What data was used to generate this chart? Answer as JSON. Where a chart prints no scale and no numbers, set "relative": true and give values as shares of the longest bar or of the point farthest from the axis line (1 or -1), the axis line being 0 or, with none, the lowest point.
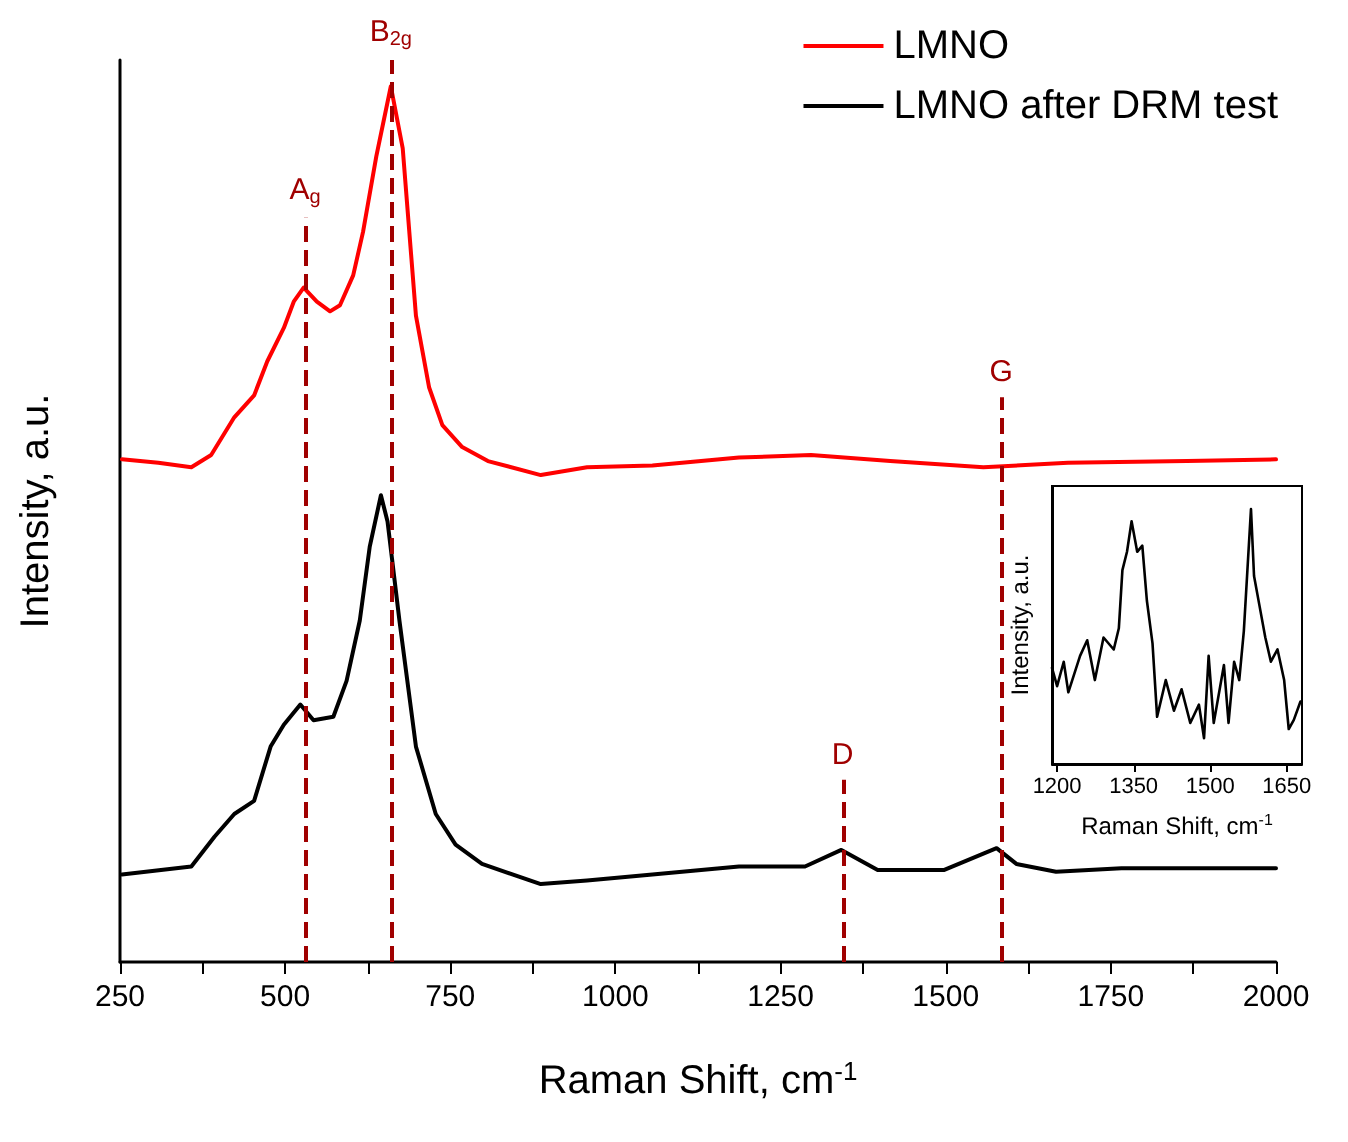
{
  "chart_data": [
    {
      "type": "line",
      "xlabel": "Raman Shift, cm$^{-1}$",
      "ylabel": "Intensity, a.u.",
      "relative": true,
      "legend": "top right",
      "grid": false,
      "marker": "none",
      "line_style": "solid",
      "xlim": [
        250,
        2000
      ],
      "xticks": [
        250,
        500,
        750,
        1000,
        1250,
        1500,
        1750,
        2000
      ],
      "series": [
        {
          "name": "LMNO",
          "color": "#ff0000",
          "x": [
            253,
            308,
            358,
            388,
            423,
            453,
            473,
            498,
            513,
            528,
            548,
            568,
            583,
            603,
            618,
            638,
            660,
            678,
            698,
            718,
            738,
            768,
            807,
            887,
            957,
            1056,
            1187,
            1296,
            1416,
            1557,
            1685,
            1865,
            2000
          ],
          "values": [
            0.574,
            0.57,
            0.565,
            0.579,
            0.622,
            0.647,
            0.686,
            0.724,
            0.754,
            0.77,
            0.754,
            0.743,
            0.75,
            0.784,
            0.834,
            0.92,
            1.0,
            0.929,
            0.738,
            0.656,
            0.613,
            0.588,
            0.572,
            0.556,
            0.565,
            0.567,
            0.576,
            0.579,
            0.572,
            0.565,
            0.57,
            0.572,
            0.574
          ]
        },
        {
          "name": "LMNO after DRM test",
          "color": "#000000",
          "x": [
            253,
            358,
            393,
            423,
            453,
            478,
            498,
            523,
            543,
            573,
            593,
            613,
            628,
            645,
            655,
            673,
            698,
            728,
            758,
            798,
            887,
            957,
            1056,
            1187,
            1287,
            1342,
            1397,
            1497,
            1577,
            1607,
            1667,
            1766,
            2000
          ],
          "values": [
            0.1,
            0.109,
            0.143,
            0.169,
            0.184,
            0.246,
            0.271,
            0.294,
            0.276,
            0.28,
            0.321,
            0.39,
            0.474,
            0.533,
            0.503,
            0.39,
            0.246,
            0.169,
            0.134,
            0.112,
            0.089,
            0.093,
            0.1,
            0.109,
            0.109,
            0.128,
            0.105,
            0.105,
            0.13,
            0.112,
            0.103,
            0.107,
            0.107
          ]
        }
      ],
      "ref_lines": [
        {
          "axis": "x",
          "value": 530,
          "label": "A$_{g}$",
          "color": "#a00000",
          "line_style": "dashed"
        },
        {
          "axis": "x",
          "value": 660,
          "label": "B$_{2g}$",
          "color": "#a00000",
          "line_style": "dashed"
        },
        {
          "axis": "x",
          "value": 1344,
          "label": "D",
          "color": "#a00000",
          "line_style": "dashed"
        },
        {
          "axis": "x",
          "value": 1584,
          "label": "G",
          "color": "#a00000",
          "line_style": "dashed"
        }
      ]
    },
    {
      "type": "line",
      "xlabel": "Raman Shift, cm$^{-1}$",
      "ylabel": "Intensity, a.u.",
      "relative": true,
      "grid": false,
      "marker": "none",
      "line_style": "solid",
      "xlim": [
        1190,
        1680
      ],
      "xticks": [
        1200,
        1350,
        1500,
        1650
      ],
      "series": [
        {
          "color": "#000000",
          "x": [
            1190,
            1200,
            1213,
            1222,
            1245,
            1259,
            1274,
            1291,
            1311,
            1321,
            1328,
            1337,
            1346,
            1357,
            1367,
            1376,
            1387,
            1396,
            1413,
            1429,
            1444,
            1461,
            1478,
            1488,
            1497,
            1507,
            1527,
            1536,
            1547,
            1557,
            1566,
            1573,
            1580,
            1586,
            1597,
            1608,
            1619,
            1632,
            1645,
            1654,
            1664,
            1677
          ],
          "values": [
            0.377,
            0.305,
            0.401,
            0.281,
            0.424,
            0.485,
            0.329,
            0.496,
            0.449,
            0.532,
            0.76,
            0.832,
            0.952,
            0.832,
            0.856,
            0.64,
            0.473,
            0.185,
            0.329,
            0.209,
            0.293,
            0.161,
            0.233,
            0.101,
            0.424,
            0.161,
            0.388,
            0.161,
            0.401,
            0.329,
            0.521,
            0.76,
            1.0,
            0.737,
            0.617,
            0.497,
            0.401,
            0.449,
            0.329,
            0.137,
            0.173,
            0.245
          ]
        }
      ]
    }
  ]
}
